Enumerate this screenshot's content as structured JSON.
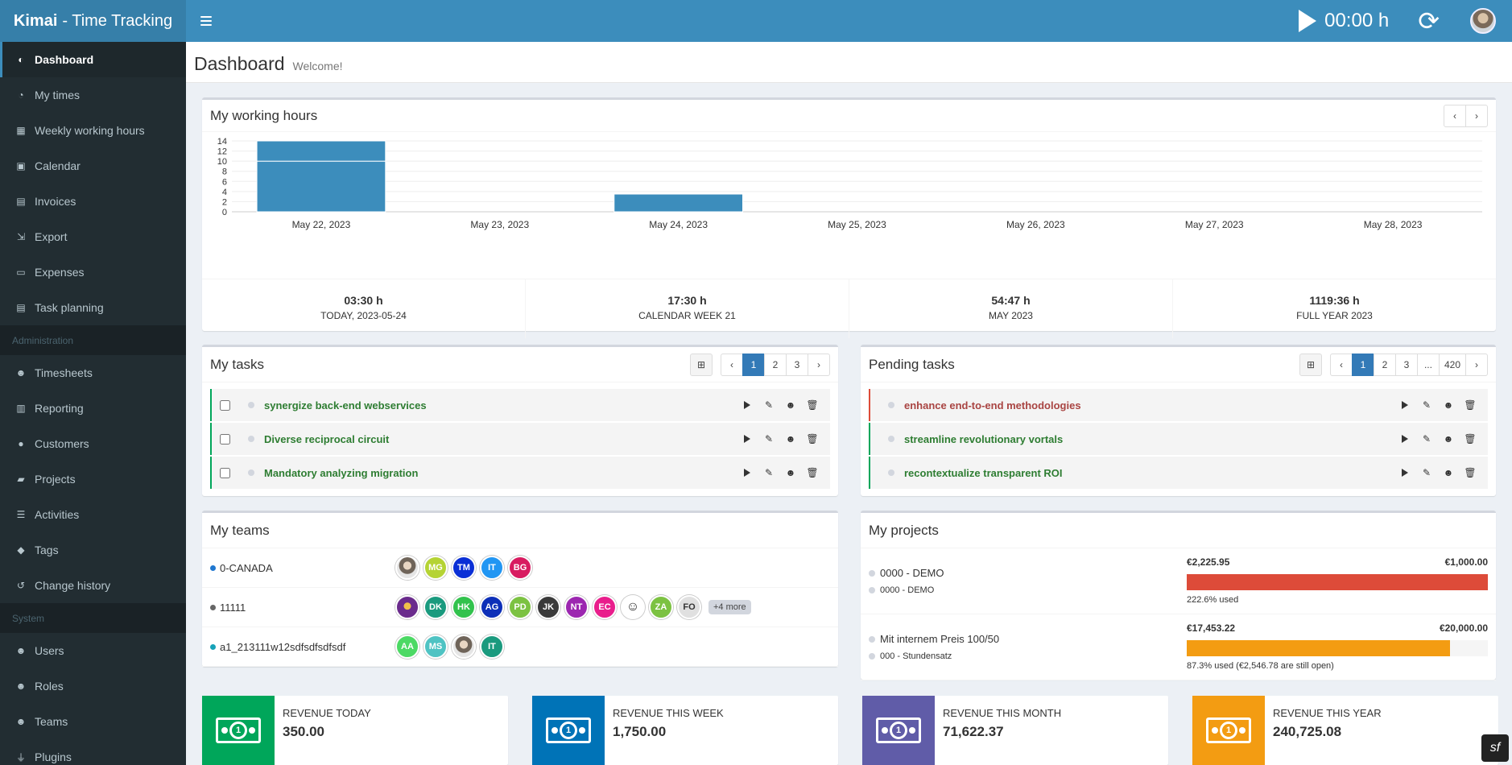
{
  "brand": {
    "name": "Kimai",
    "suffix": "- Time Tracking"
  },
  "topbar": {
    "timer": "00:00 h"
  },
  "sidebar": {
    "items": [
      {
        "label": "Dashboard",
        "icon": "dashboard-icon"
      },
      {
        "label": "My times",
        "icon": "clock-icon"
      },
      {
        "label": "Weekly working hours",
        "icon": "grid-icon"
      },
      {
        "label": "Calendar",
        "icon": "calendar-icon"
      },
      {
        "label": "Invoices",
        "icon": "invoice-icon"
      },
      {
        "label": "Export",
        "icon": "export-icon"
      },
      {
        "label": "Expenses",
        "icon": "expenses-icon"
      },
      {
        "label": "Task planning",
        "icon": "clipboard-icon"
      }
    ],
    "admin_header": "Administration",
    "admin_items": [
      {
        "label": "Timesheets",
        "icon": "user-clock-icon"
      },
      {
        "label": "Reporting",
        "icon": "chart-icon"
      },
      {
        "label": "Customers",
        "icon": "user-icon"
      },
      {
        "label": "Projects",
        "icon": "briefcase-icon"
      },
      {
        "label": "Activities",
        "icon": "list-icon"
      },
      {
        "label": "Tags",
        "icon": "tags-icon"
      },
      {
        "label": "Change history",
        "icon": "history-icon"
      }
    ],
    "system_header": "System",
    "system_items": [
      {
        "label": "Users",
        "icon": "users-icon"
      },
      {
        "label": "Roles",
        "icon": "user-lock-icon"
      },
      {
        "label": "Teams",
        "icon": "team-icon"
      },
      {
        "label": "Plugins",
        "icon": "plug-icon"
      }
    ]
  },
  "page": {
    "title": "Dashboard",
    "subtitle": "Welcome!"
  },
  "working_hours": {
    "title": "My working hours",
    "stats": [
      {
        "value": "03:30 h",
        "label": "TODAY, 2023-05-24"
      },
      {
        "value": "17:30 h",
        "label": "CALENDAR WEEK 21"
      },
      {
        "value": "54:47 h",
        "label": "MAY 2023"
      },
      {
        "value": "1119:36 h",
        "label": "FULL YEAR 2023"
      }
    ]
  },
  "chart_data": {
    "type": "bar",
    "categories": [
      "May 22, 2023",
      "May 23, 2023",
      "May 24, 2023",
      "May 25, 2023",
      "May 26, 2023",
      "May 27, 2023",
      "May 28, 2023"
    ],
    "series": [
      {
        "values": [
          10,
          0,
          3.5,
          0,
          0,
          0,
          0
        ],
        "color": "#3c8dbc"
      },
      {
        "values": [
          4,
          0,
          0,
          0,
          0,
          0,
          0
        ],
        "color": "#3c8dbc"
      }
    ],
    "stacked": true,
    "yticks": [
      0,
      2,
      4,
      6,
      8,
      10,
      12,
      14
    ],
    "ylim": [
      0,
      14
    ],
    "grid": true
  },
  "my_tasks": {
    "title": "My tasks",
    "pages": [
      "1",
      "2",
      "3"
    ],
    "current_page": "1",
    "items": [
      {
        "name": "synergize back-end webservices"
      },
      {
        "name": "Diverse reciprocal circuit"
      },
      {
        "name": "Mandatory analyzing migration"
      }
    ]
  },
  "pending_tasks": {
    "title": "Pending tasks",
    "pages": [
      "1",
      "2",
      "3",
      "...",
      "420"
    ],
    "current_page": "1",
    "items": [
      {
        "name": "enhance end-to-end methodologies",
        "status": "red"
      },
      {
        "name": "streamline revolutionary vortals",
        "status": "green"
      },
      {
        "name": "recontextualize transparent ROI",
        "status": "green"
      }
    ]
  },
  "teams": {
    "title": "My teams",
    "rows": [
      {
        "name": "0-CANADA",
        "dot": "#1f77d0",
        "members": [
          {
            "t": "",
            "c": "photo"
          },
          {
            "t": "MG",
            "c": "#b5d334"
          },
          {
            "t": "TM",
            "c": "#0a2fd6"
          },
          {
            "t": "IT",
            "c": "#2196f3"
          },
          {
            "t": "BG",
            "c": "#d81b60"
          }
        ]
      },
      {
        "name": "11111",
        "dot": "#666666",
        "members": [
          {
            "t": "",
            "c": "photo2"
          },
          {
            "t": "DK",
            "c": "#1a9a7e"
          },
          {
            "t": "HK",
            "c": "#32c24d"
          },
          {
            "t": "AG",
            "c": "#0d2fb8"
          },
          {
            "t": "PD",
            "c": "#7cc242"
          },
          {
            "t": "JK",
            "c": "#3a3a3a"
          },
          {
            "t": "NT",
            "c": "#9c27b0"
          },
          {
            "t": "EC",
            "c": "#e91e8c"
          },
          {
            "t": "",
            "c": "smiley"
          },
          {
            "t": "ZA",
            "c": "#7cc242"
          },
          {
            "t": "FO",
            "c": "#e0e0e0"
          }
        ],
        "more": "+4 more"
      },
      {
        "name": "a1_213111w12sdfsdfsdfsdf",
        "dot": "#17a2b8",
        "members": [
          {
            "t": "AA",
            "c": "#4cd964"
          },
          {
            "t": "MS",
            "c": "#4fc3c3"
          },
          {
            "t": "",
            "c": "photo"
          },
          {
            "t": "IT",
            "c": "#1a9a7e"
          }
        ]
      }
    ]
  },
  "projects": {
    "title": "My projects",
    "rows": [
      {
        "name": "0000 - DEMO",
        "customer": "0000 - DEMO",
        "spent": "€2,225.95",
        "budget": "€1,000.00",
        "percent": 100,
        "color": "#dd4b39",
        "used": "222.6% used"
      },
      {
        "name": "Mit internem Preis 100/50",
        "customer": "000 - Stundensatz",
        "spent": "€17,453.22",
        "budget": "€20,000.00",
        "percent": 87.3,
        "color": "#f39c12",
        "used": "87.3% used (€2,546.78 are still open)"
      }
    ]
  },
  "revenue": [
    {
      "label": "Revenue today",
      "value": "350.00",
      "color": "#00a65a"
    },
    {
      "label": "Revenue this week",
      "value": "1,750.00",
      "color": "#0073b7"
    },
    {
      "label": "Revenue this month",
      "value": "71,622.37",
      "color": "#605ca8"
    },
    {
      "label": "Revenue this year",
      "value": "240,725.08",
      "color": "#f39c12"
    }
  ]
}
